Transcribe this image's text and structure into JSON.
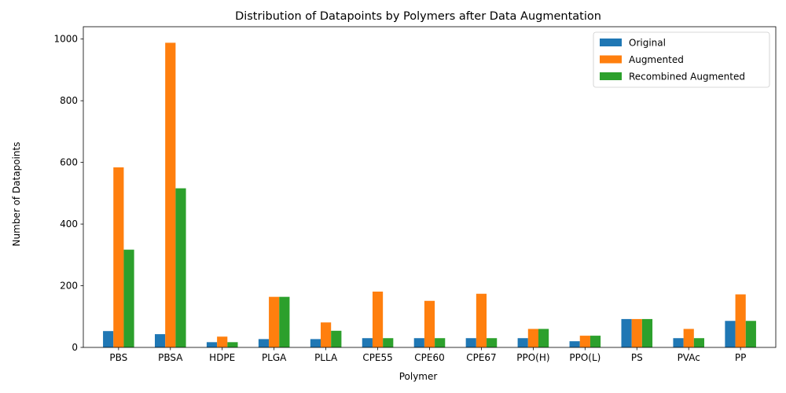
{
  "chart_data": {
    "type": "bar",
    "title": "Distribution of Datapoints by Polymers after Data Augmentation",
    "xlabel": "Polymer",
    "ylabel": "Number of Datapoints",
    "ylim": [
      0,
      1040
    ],
    "yticks": [
      0,
      200,
      400,
      600,
      800,
      1000
    ],
    "grid": false,
    "legend_position": "top-right",
    "categories": [
      "PBS",
      "PBSA",
      "HDPE",
      "PLGA",
      "PLLA",
      "CPE55",
      "CPE60",
      "CPE67",
      "PPO(H)",
      "PPO(L)",
      "PS",
      "PVAc",
      "PP"
    ],
    "series": [
      {
        "name": "Original",
        "color": "#1f77b4",
        "values": [
          53,
          43,
          17,
          27,
          27,
          30,
          30,
          30,
          30,
          20,
          92,
          30,
          86
        ]
      },
      {
        "name": "Augmented",
        "color": "#ff7f0e",
        "values": [
          584,
          988,
          35,
          164,
          81,
          181,
          151,
          174,
          60,
          38,
          92,
          60,
          172
        ]
      },
      {
        "name": "Recombined Augmented",
        "color": "#2ca02c",
        "values": [
          317,
          516,
          17,
          164,
          54,
          30,
          30,
          30,
          60,
          38,
          92,
          30,
          86
        ]
      }
    ]
  }
}
